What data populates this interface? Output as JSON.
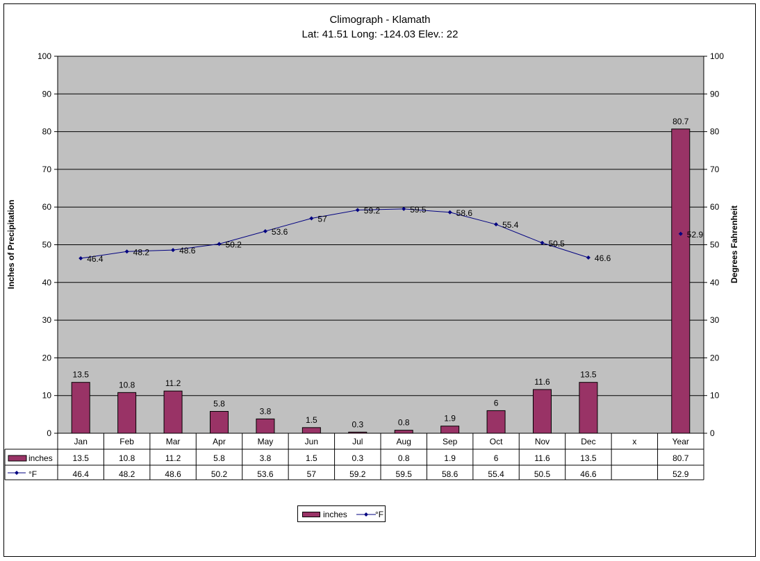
{
  "chart_data": {
    "type": "bar+line",
    "title": "Climograph - Klamath",
    "subtitle": "Lat: 41.51 Long: -124.03 Elev.: 22",
    "categories": [
      "Jan",
      "Feb",
      "Mar",
      "Apr",
      "May",
      "Jun",
      "Jul",
      "Aug",
      "Sep",
      "Oct",
      "Nov",
      "Dec",
      "x",
      "Year"
    ],
    "series": [
      {
        "name": "inches",
        "type": "bar",
        "axis": "left",
        "values": [
          13.5,
          10.8,
          11.2,
          5.8,
          3.8,
          1.5,
          0.3,
          0.8,
          1.9,
          6,
          11.6,
          13.5,
          null,
          80.7
        ],
        "color": "#993366"
      },
      {
        "name": "°F",
        "type": "line",
        "axis": "right",
        "values": [
          46.4,
          48.2,
          48.6,
          50.2,
          53.6,
          57,
          59.2,
          59.5,
          58.6,
          55.4,
          50.5,
          46.6,
          null,
          52.9
        ],
        "color": "#000080"
      }
    ],
    "ylabel": "Inches of Precipitation",
    "y2label": "Degrees Fahrenheit",
    "ylim": [
      0,
      100
    ],
    "y2lim": [
      0,
      100
    ],
    "yticks": [
      0,
      10,
      20,
      30,
      40,
      50,
      60,
      70,
      80,
      90,
      100
    ],
    "grid": true,
    "plot_background": "#c0c0c0",
    "legend_position": "bottom",
    "data_table": true
  },
  "table": {
    "rows": [
      {
        "label": "inches",
        "cells": [
          "13.5",
          "10.8",
          "11.2",
          "5.8",
          "3.8",
          "1.5",
          "0.3",
          "0.8",
          "1.9",
          "6",
          "11.6",
          "13.5",
          "",
          "80.7"
        ]
      },
      {
        "label": "°F",
        "cells": [
          "46.4",
          "48.2",
          "48.6",
          "50.2",
          "53.6",
          "57",
          "59.2",
          "59.5",
          "58.6",
          "55.4",
          "50.5",
          "46.6",
          "",
          "52.9"
        ]
      }
    ]
  },
  "legend": {
    "bar_label": "inches",
    "line_label": "°F"
  }
}
